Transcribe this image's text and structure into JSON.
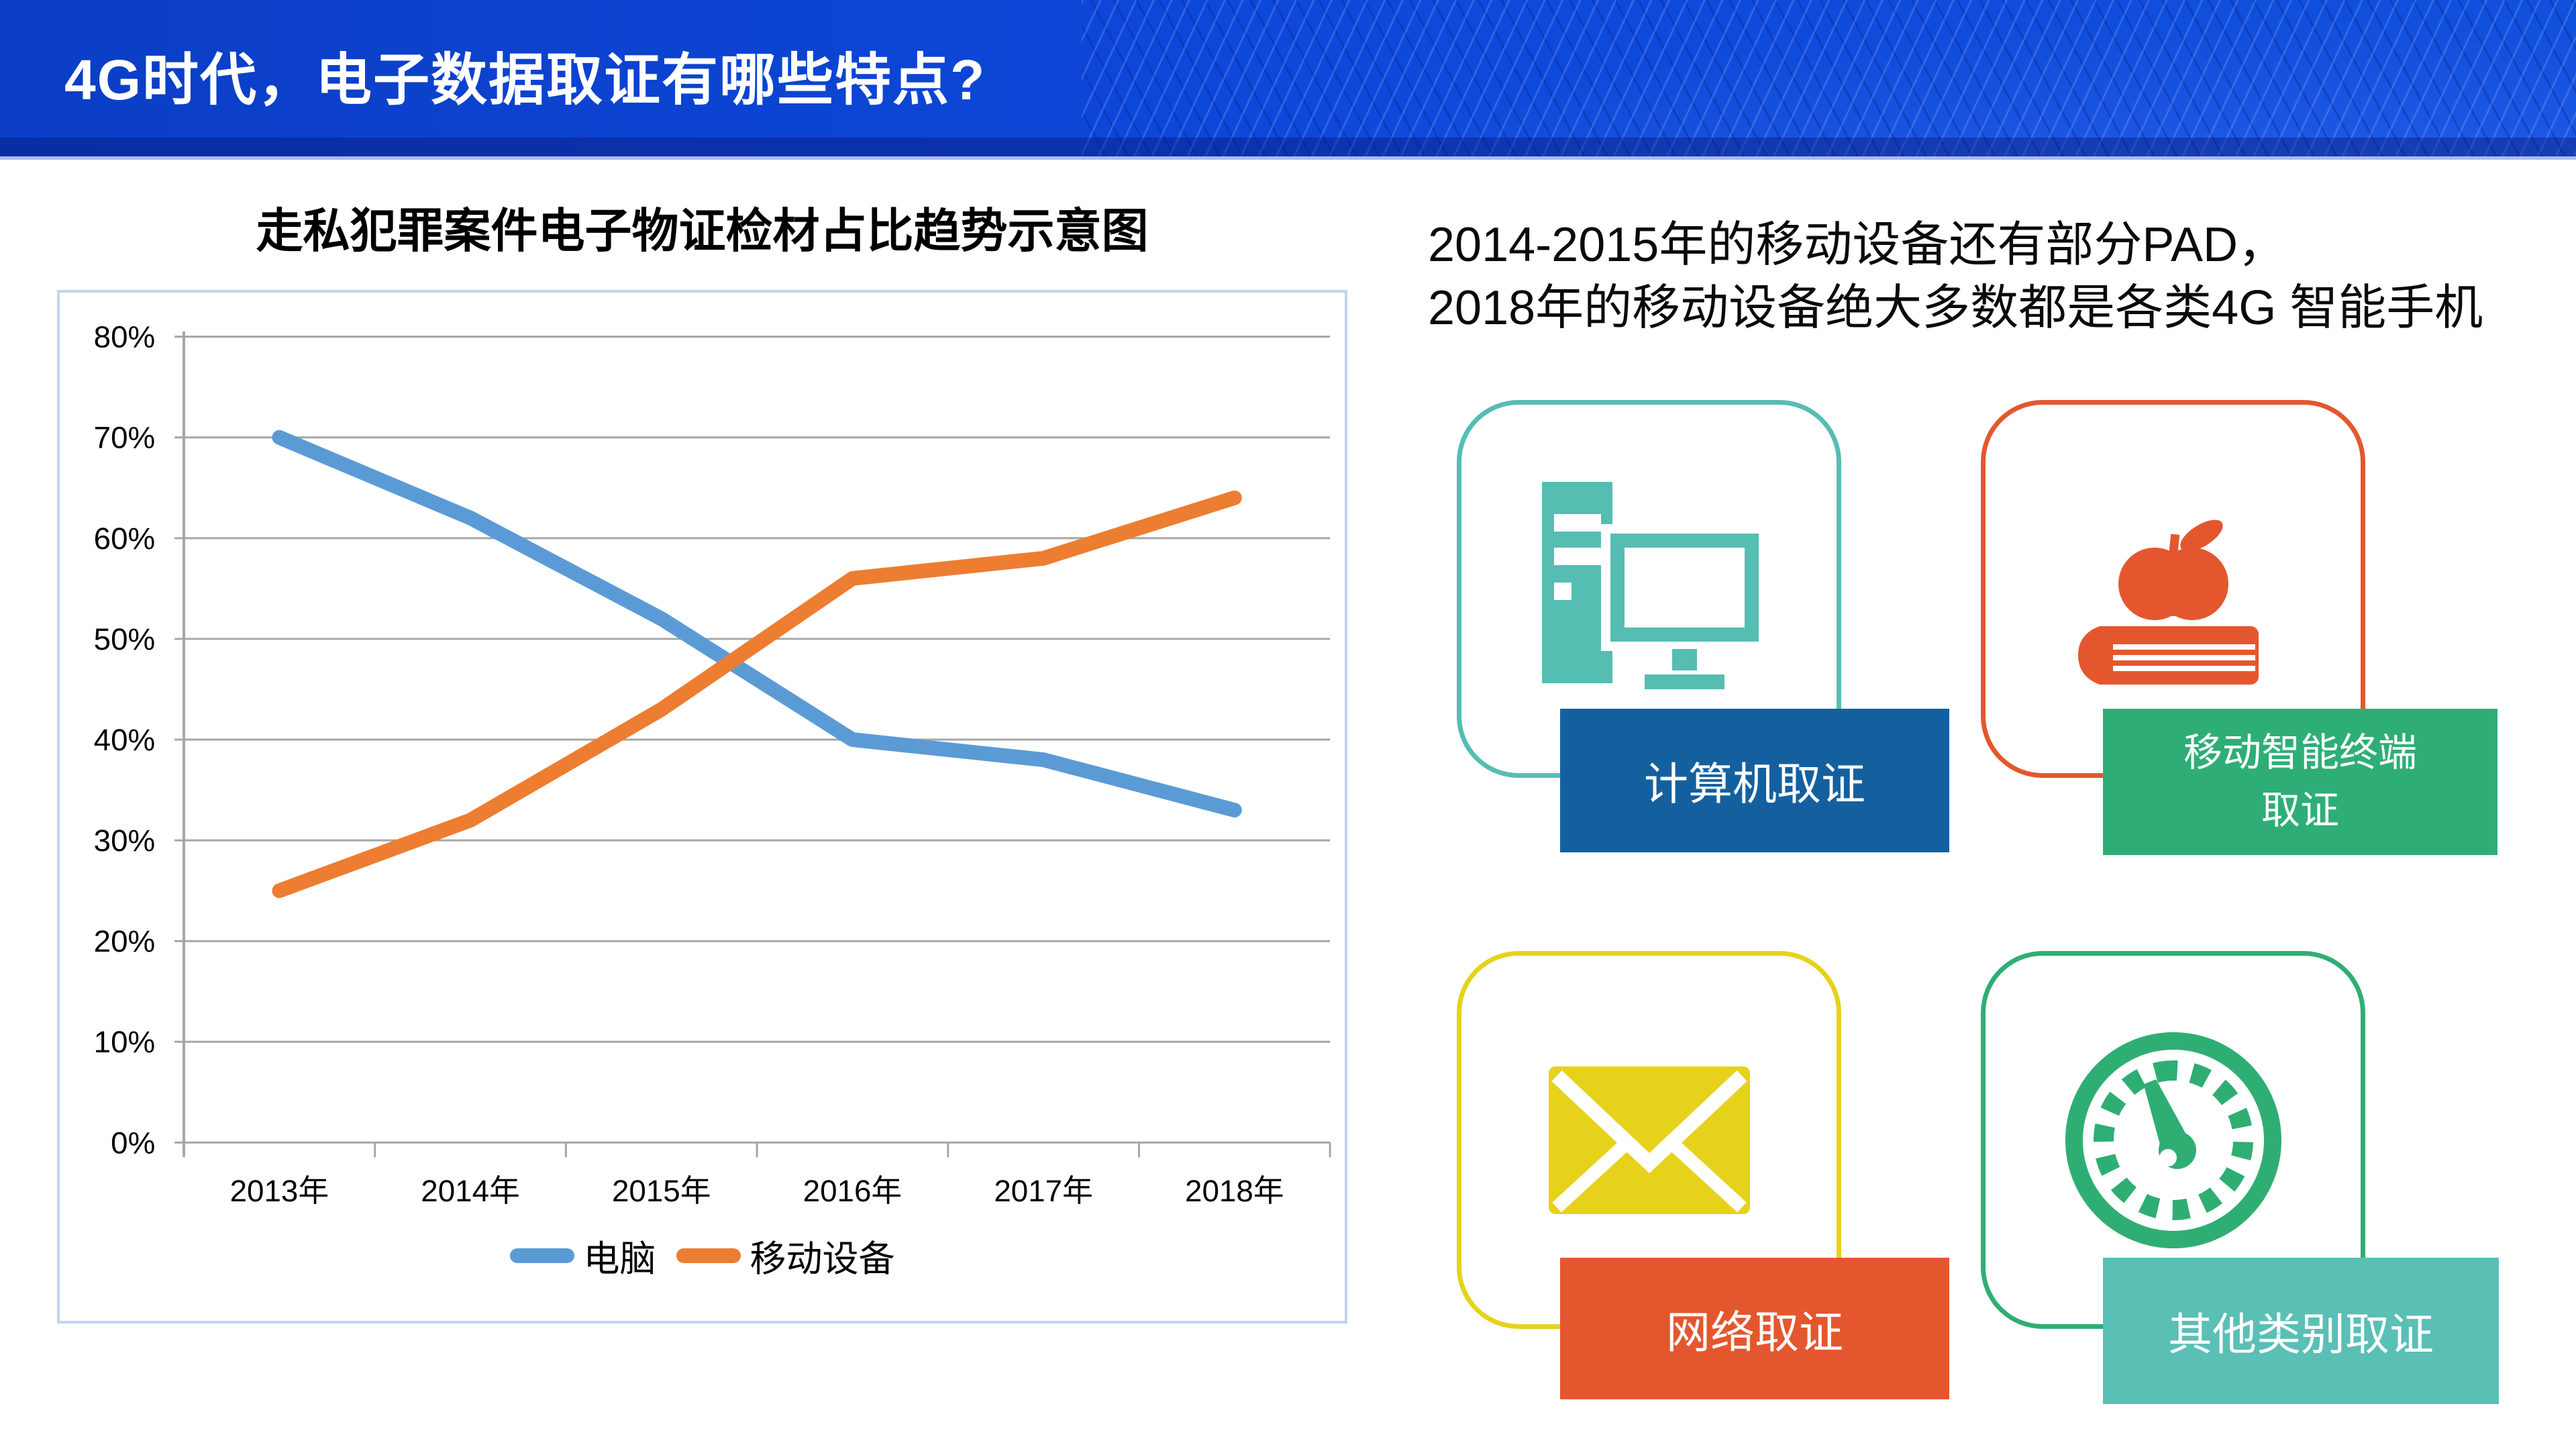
{
  "header": {
    "title": "4G时代，电子数据取证有哪些特点?"
  },
  "chart": {
    "title": "走私犯罪案件电子物证检材占比趋势示意图"
  },
  "chart_data": {
    "type": "line",
    "title": "走私犯罪案件电子物证检材占比趋势示意图",
    "categories": [
      "2013年",
      "2014年",
      "2015年",
      "2016年",
      "2017年",
      "2018年"
    ],
    "series": [
      {
        "name": "电脑",
        "color": "#5B9BD5",
        "values": [
          70,
          62,
          52,
          40,
          38,
          33
        ]
      },
      {
        "name": "移动设备",
        "color": "#ED7D31",
        "values": [
          25,
          32,
          43,
          56,
          58,
          64
        ]
      }
    ],
    "xlabel": "",
    "ylabel": "",
    "ylim": [
      0,
      80
    ],
    "ytick_step": 10,
    "ytick_format": "percent",
    "grid": true,
    "legend_position": "bottom"
  },
  "note": {
    "line1": "2014-2015年的移动设备还有部分PAD，",
    "line2": "2018年的移动设备绝大多数都是各类4G 智能手机"
  },
  "cards": [
    {
      "label": "计算机取证",
      "icon": "desktop-computer-icon",
      "border_color": "#56BDB2",
      "icon_color": "#56BDB2",
      "label_bg": "#14609F"
    },
    {
      "label": "移动智能终端\n取证",
      "icon": "apple-on-book-icon",
      "border_color": "#E4572E",
      "icon_color": "#E4572E",
      "label_bg": "#2EAE76"
    },
    {
      "label": "网络取证",
      "icon": "envelope-icon",
      "border_color": "#E6D21B",
      "icon_color": "#E6D21B",
      "label_bg": "#E4572E"
    },
    {
      "label": "其他类别取证",
      "icon": "gauge-icon",
      "border_color": "#2FAE74",
      "icon_color": "#2FAE74",
      "label_bg": "#5ABFB5"
    }
  ],
  "theme": {
    "header_bg": "#0D47D8",
    "header_text": "#FFFFFF",
    "chart_border": "#BDD7EE",
    "grid_color": "#A6A6A6"
  }
}
